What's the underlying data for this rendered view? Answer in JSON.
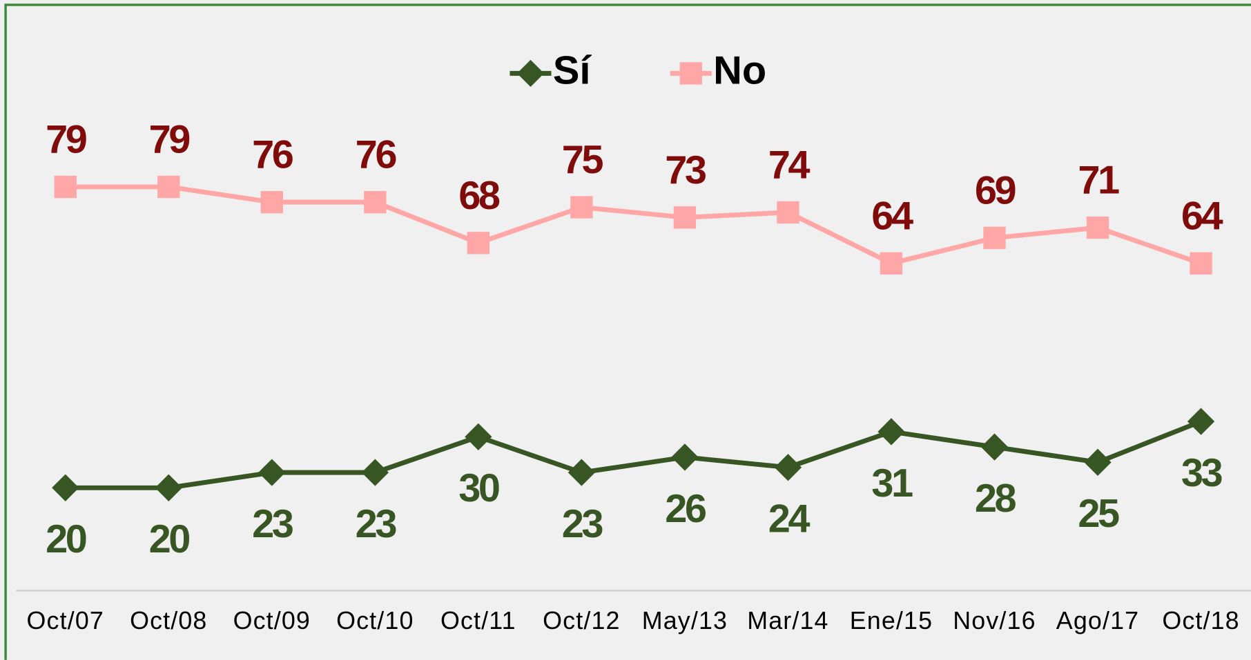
{
  "chart_data": {
    "type": "line",
    "categories": [
      "Oct/07",
      "Oct/08",
      "Oct/09",
      "Oct/10",
      "Oct/11",
      "Oct/12",
      "May/13",
      "Mar/14",
      "Ene/15",
      "Nov/16",
      "Ago/17",
      "Oct/18"
    ],
    "series": [
      {
        "name": "Sí",
        "color": "#375623",
        "label_color": "#375623",
        "marker": "diamond",
        "label_position": "below",
        "values": [
          20,
          20,
          23,
          23,
          30,
          23,
          26,
          24,
          31,
          28,
          25,
          33
        ]
      },
      {
        "name": "No",
        "color": "#ffa7a7",
        "label_color": "#7f0b0b",
        "marker": "square",
        "label_position": "above",
        "values": [
          79,
          79,
          76,
          76,
          68,
          75,
          73,
          74,
          64,
          69,
          71,
          64
        ]
      }
    ],
    "ylim": [
      0,
      100
    ],
    "legend": "top"
  }
}
